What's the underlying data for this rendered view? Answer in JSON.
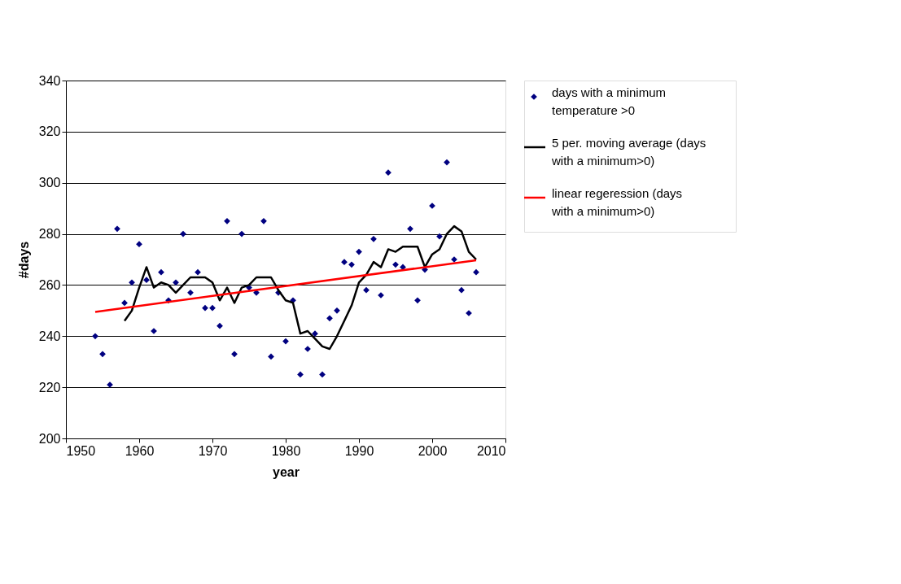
{
  "chart_data": {
    "type": "scatter",
    "xlabel": "year",
    "ylabel": "#days",
    "xlim": [
      1950,
      2010
    ],
    "xticks": [
      1950,
      1960,
      1970,
      1980,
      1990,
      2000,
      2010
    ],
    "ylim": [
      200,
      340
    ],
    "yticks": [
      200,
      220,
      240,
      260,
      280,
      300,
      320,
      340
    ],
    "grid": "y",
    "legend": "right",
    "series": [
      {
        "name": "days with a minimum temperature >0",
        "marker": "diamond",
        "color": "#000080",
        "x": [
          1954,
          1955,
          1956,
          1957,
          1958,
          1959,
          1960,
          1961,
          1962,
          1963,
          1964,
          1965,
          1966,
          1967,
          1968,
          1969,
          1970,
          1971,
          1972,
          1973,
          1974,
          1975,
          1976,
          1977,
          1978,
          1979,
          1980,
          1981,
          1982,
          1983,
          1984,
          1985,
          1986,
          1987,
          1988,
          1989,
          1990,
          1991,
          1992,
          1993,
          1994,
          1995,
          1996,
          1997,
          1998,
          1999,
          2000,
          2001,
          2002,
          2003,
          2004,
          2005,
          2006
        ],
        "values": [
          240,
          233,
          221,
          282,
          253,
          261,
          276,
          262,
          242,
          265,
          254,
          261,
          280,
          257,
          265,
          251,
          251,
          244,
          285,
          233,
          280,
          259,
          257,
          285,
          232,
          257,
          238,
          254,
          225,
          235,
          241,
          225,
          247,
          250,
          269,
          268,
          273,
          258,
          278,
          256,
          304,
          268,
          267,
          282,
          254,
          266,
          291,
          279,
          308,
          270,
          258,
          249,
          265
        ]
      },
      {
        "name": "5 per. moving average (days with a  minimum>0)",
        "type": "line",
        "marker": "none",
        "line_style": "solid",
        "color": "#000000",
        "x": [
          1958,
          1959,
          1960,
          1961,
          1962,
          1963,
          1964,
          1965,
          1966,
          1967,
          1968,
          1969,
          1970,
          1971,
          1972,
          1973,
          1974,
          1975,
          1976,
          1977,
          1978,
          1979,
          1980,
          1981,
          1982,
          1983,
          1984,
          1985,
          1986,
          1987,
          1988,
          1989,
          1990,
          1991,
          1992,
          1993,
          1994,
          1995,
          1996,
          1997,
          1998,
          1999,
          2000,
          2001,
          2002,
          2003,
          2004,
          2005,
          2006
        ],
        "values": [
          246,
          250,
          259,
          267,
          259,
          261,
          260,
          257,
          260,
          263,
          263,
          263,
          261,
          254,
          259,
          253,
          259,
          260,
          263,
          263,
          263,
          258,
          254,
          253,
          241,
          242,
          239,
          236,
          235,
          240,
          246,
          252,
          261,
          264,
          269,
          267,
          274,
          273,
          275,
          275,
          275,
          267,
          272,
          274,
          280,
          283,
          281,
          273,
          270
        ]
      },
      {
        "name": "linear regeression (days with a minimum>0)",
        "type": "line",
        "marker": "none",
        "line_style": "solid",
        "color": "#ff0000",
        "x": [
          1954,
          2006
        ],
        "values": [
          249.5,
          269.7
        ]
      }
    ]
  }
}
